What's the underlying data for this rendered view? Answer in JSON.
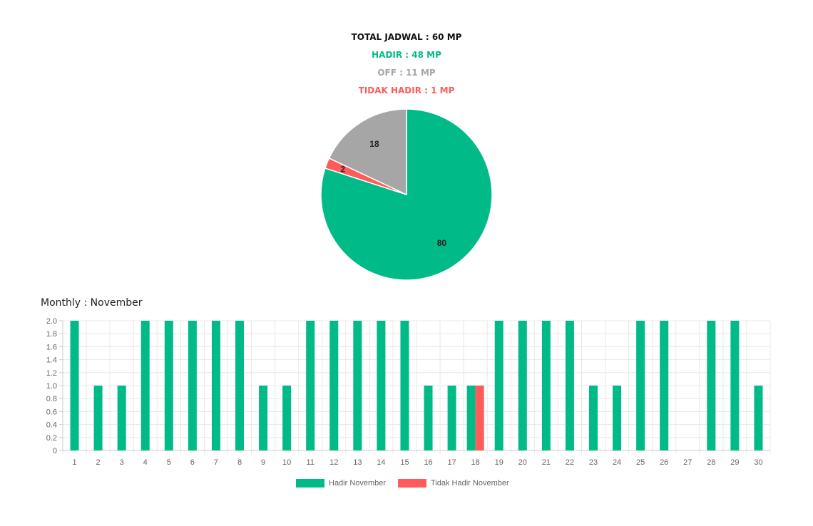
{
  "summary": {
    "total": "TOTAL JADWAL : 60 MP",
    "hadir": "HADIR : 48 MP",
    "off": "OFF : 11 MP",
    "tidak_hadir": "TIDAK HADIR : 1 MP"
  },
  "monthly_title": "Monthly : November",
  "colors": {
    "hadir": "#00bb88",
    "off": "#a6a6a6",
    "tidak_hadir": "#ff5b5b",
    "grid": "#e8e8e8",
    "tick": "#666666"
  },
  "chart_data": [
    {
      "type": "pie",
      "slices": [
        {
          "label": "Hadir",
          "value": 80,
          "color": "#00bb88"
        },
        {
          "label": "Tidak Hadir",
          "value": 2,
          "color": "#ff5b5b"
        },
        {
          "label": "Off",
          "value": 18,
          "color": "#a6a6a6"
        }
      ],
      "start": "top",
      "direction": "clockwise",
      "data_labels": true
    },
    {
      "type": "bar",
      "title": "Monthly : November",
      "categories": [
        "1",
        "2",
        "3",
        "4",
        "5",
        "6",
        "7",
        "8",
        "9",
        "10",
        "11",
        "12",
        "13",
        "14",
        "15",
        "16",
        "17",
        "18",
        "19",
        "20",
        "21",
        "22",
        "23",
        "24",
        "25",
        "26",
        "27",
        "28",
        "29",
        "30"
      ],
      "series": [
        {
          "name": "Hadir November",
          "color": "#00bb88",
          "values": [
            2,
            1,
            1,
            2,
            2,
            2,
            2,
            2,
            1,
            1,
            2,
            2,
            2,
            2,
            2,
            1,
            1,
            1,
            2,
            2,
            2,
            2,
            1,
            1,
            2,
            2,
            0,
            2,
            2,
            1
          ]
        },
        {
          "name": "Tidak Hadir November",
          "color": "#ff5b5b",
          "values": [
            0,
            0,
            0,
            0,
            0,
            0,
            0,
            0,
            0,
            0,
            0,
            0,
            0,
            0,
            0,
            0,
            0,
            1,
            0,
            0,
            0,
            0,
            0,
            0,
            0,
            0,
            0,
            0,
            0,
            0
          ]
        }
      ],
      "ylim": [
        0,
        2
      ],
      "yticks": [
        "0",
        "0.2",
        "0.4",
        "0.6",
        "0.8",
        "1.0",
        "1.2",
        "1.4",
        "1.6",
        "1.8",
        "2.0"
      ],
      "grid": true,
      "legend_position": "bottom"
    }
  ]
}
